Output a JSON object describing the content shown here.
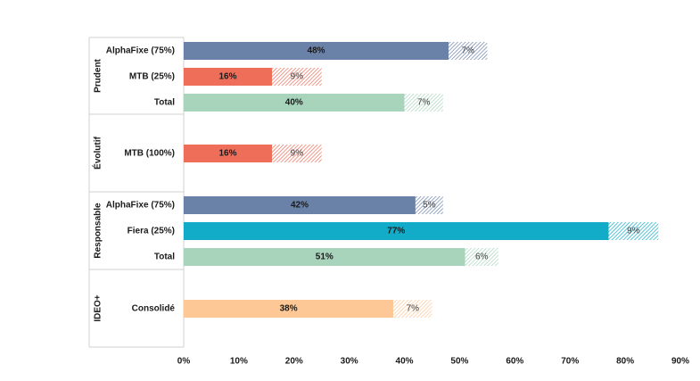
{
  "chart_data": {
    "type": "bar",
    "orientation": "horizontal",
    "stacked": true,
    "xlim": [
      0,
      90
    ],
    "x_ticks": [
      "0%",
      "10%",
      "20%",
      "30%",
      "40%",
      "50%",
      "60%",
      "70%",
      "80%",
      "90%"
    ],
    "groups": [
      {
        "name": "Prudent",
        "rows": [
          {
            "label": "AlphaFixe (75%)",
            "value": 48,
            "extra": 7,
            "color": "#6b82a8",
            "value_label": "48%",
            "extra_label": "7%"
          },
          {
            "label": "MTB (25%)",
            "value": 16,
            "extra": 9,
            "color": "#ee6e5a",
            "value_label": "16%",
            "extra_label": "9%"
          },
          {
            "label": "Total",
            "value": 40,
            "extra": 7,
            "color": "#a8d4bc",
            "value_label": "40%",
            "extra_label": "7%"
          }
        ]
      },
      {
        "name": "Évolutif",
        "rows": [
          {
            "label": "MTB (100%)",
            "value": 16,
            "extra": 9,
            "color": "#ee6e5a",
            "value_label": "16%",
            "extra_label": "9%"
          }
        ]
      },
      {
        "name": "Responsable",
        "rows": [
          {
            "label": "AlphaFixe (75%)",
            "value": 42,
            "extra": 5,
            "color": "#6b82a8",
            "value_label": "42%",
            "extra_label": "5%"
          },
          {
            "label": "Fiera (25%)",
            "value": 77,
            "extra": 9,
            "color": "#12acc8",
            "value_label": "77%",
            "extra_label": "9%"
          },
          {
            "label": "Total",
            "value": 51,
            "extra": 6,
            "color": "#a8d4bc",
            "value_label": "51%",
            "extra_label": "6%"
          }
        ]
      },
      {
        "name": "IDEO+",
        "rows": [
          {
            "label": "Consolidé",
            "value": 38,
            "extra": 7,
            "color": "#fdc896",
            "value_label": "38%",
            "extra_label": "7%"
          }
        ]
      }
    ]
  }
}
